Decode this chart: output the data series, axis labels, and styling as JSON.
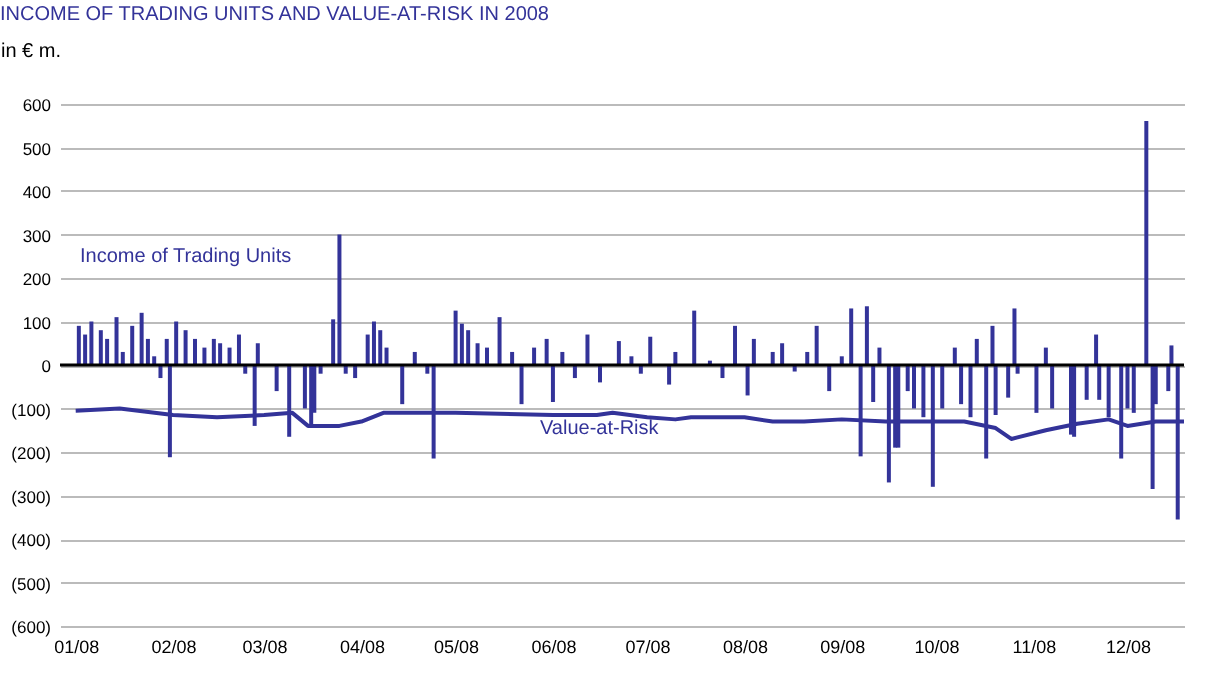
{
  "chart_data": {
    "type": "bar",
    "title": "INCOME OF TRADING UNITS AND VALUE-AT-RISK IN 2008",
    "ylabel": "in € m.",
    "series": [
      {
        "name": "Income of Trading Units",
        "color": "#333399",
        "x": [
          "2008-01-02",
          "2008-01-04",
          "2008-01-06",
          "2008-01-09",
          "2008-01-11",
          "2008-01-14",
          "2008-01-16",
          "2008-01-19",
          "2008-01-22",
          "2008-01-24",
          "2008-01-26",
          "2008-01-28",
          "2008-01-30",
          "2008-01-31",
          "2008-02-02",
          "2008-02-05",
          "2008-02-08",
          "2008-02-11",
          "2008-02-14",
          "2008-02-16",
          "2008-02-19",
          "2008-02-22",
          "2008-02-24",
          "2008-02-27",
          "2008-02-28",
          "2008-03-05",
          "2008-03-09",
          "2008-03-14",
          "2008-03-16",
          "2008-03-17",
          "2008-03-19",
          "2008-03-23",
          "2008-03-25",
          "2008-03-27",
          "2008-03-30",
          "2008-04-03",
          "2008-04-05",
          "2008-04-07",
          "2008-04-09",
          "2008-04-14",
          "2008-04-18",
          "2008-04-22",
          "2008-04-24",
          "2008-05-01",
          "2008-05-03",
          "2008-05-05",
          "2008-05-08",
          "2008-05-11",
          "2008-05-15",
          "2008-05-19",
          "2008-05-22",
          "2008-05-26",
          "2008-05-30",
          "2008-06-01",
          "2008-06-04",
          "2008-06-08",
          "2008-06-12",
          "2008-06-16",
          "2008-06-22",
          "2008-06-26",
          "2008-06-29",
          "2008-07-02",
          "2008-07-08",
          "2008-07-10",
          "2008-07-16",
          "2008-07-21",
          "2008-07-25",
          "2008-07-29",
          "2008-08-02",
          "2008-08-04",
          "2008-08-10",
          "2008-08-13",
          "2008-08-17",
          "2008-08-21",
          "2008-08-24",
          "2008-08-28",
          "2008-09-01",
          "2008-09-04",
          "2008-09-07",
          "2008-09-09",
          "2008-09-11",
          "2008-09-13",
          "2008-09-16",
          "2008-09-18",
          "2008-09-19",
          "2008-09-22",
          "2008-09-24",
          "2008-09-27",
          "2008-09-30",
          "2008-10-03",
          "2008-10-07",
          "2008-10-09",
          "2008-10-12",
          "2008-10-14",
          "2008-10-17",
          "2008-10-19",
          "2008-10-20",
          "2008-10-24",
          "2008-10-26",
          "2008-10-27",
          "2008-11-02",
          "2008-11-05",
          "2008-11-07",
          "2008-11-13",
          "2008-11-14",
          "2008-11-18",
          "2008-11-21",
          "2008-11-22",
          "2008-11-25",
          "2008-11-29",
          "2008-12-01",
          "2008-12-03",
          "2008-12-07",
          "2008-12-09",
          "2008-12-10",
          "2008-12-14",
          "2008-12-15",
          "2008-12-17"
        ],
        "values": [
          90,
          70,
          100,
          80,
          60,
          110,
          30,
          90,
          120,
          60,
          20,
          -30,
          60,
          -212,
          100,
          80,
          60,
          40,
          60,
          50,
          40,
          70,
          -20,
          -140,
          50,
          -60,
          -165,
          -100,
          -140,
          -110,
          -20,
          105,
          300,
          -20,
          -30,
          70,
          100,
          80,
          40,
          -90,
          30,
          -20,
          -215,
          125,
          95,
          80,
          50,
          40,
          110,
          30,
          -90,
          40,
          60,
          -85,
          30,
          -30,
          70,
          -40,
          55,
          20,
          -20,
          65,
          -45,
          30,
          125,
          10,
          -30,
          90,
          -70,
          60,
          30,
          50,
          -15,
          30,
          90,
          -60,
          20,
          130,
          -210,
          135,
          -85,
          40,
          -270,
          -190,
          -190,
          -60,
          -100,
          -120,
          -280,
          -100,
          40,
          -90,
          -120,
          60,
          -215,
          90,
          -115,
          -75,
          130,
          -20,
          -110,
          40,
          -100,
          -160,
          -165,
          -80,
          70,
          -80,
          -120,
          -215,
          -100,
          -110,
          561,
          -285,
          -90,
          -60,
          45,
          -355
        ]
      },
      {
        "name": "Value-at-Risk",
        "type": "line",
        "color": "#333399",
        "x": [
          "2008-01-01",
          "2008-01-15",
          "2008-02-01",
          "2008-02-15",
          "2008-03-01",
          "2008-03-10",
          "2008-03-15",
          "2008-03-25",
          "2008-04-01",
          "2008-04-08",
          "2008-05-01",
          "2008-06-01",
          "2008-06-15",
          "2008-06-20",
          "2008-07-01",
          "2008-07-10",
          "2008-07-15",
          "2008-08-01",
          "2008-08-10",
          "2008-08-20",
          "2008-09-01",
          "2008-09-15",
          "2008-09-25",
          "2008-10-10",
          "2008-10-20",
          "2008-10-25",
          "2008-11-05",
          "2008-11-15",
          "2008-11-25",
          "2008-12-01",
          "2008-12-10",
          "2008-12-19"
        ],
        "values": [
          -105,
          -100,
          -115,
          -120,
          -115,
          -110,
          -140,
          -140,
          -130,
          -110,
          -110,
          -115,
          -115,
          -110,
          -120,
          -125,
          -120,
          -120,
          -130,
          -130,
          -125,
          -130,
          -130,
          -130,
          -145,
          -170,
          -150,
          -135,
          -125,
          -140,
          -130,
          -130
        ]
      }
    ],
    "xlim": [
      "2007-12-27",
      "2008-12-19"
    ],
    "xticks": [
      {
        "value": "2008-01-01",
        "label": "01/08"
      },
      {
        "value": "2008-02-01",
        "label": "02/08"
      },
      {
        "value": "2008-03-01",
        "label": "03/08"
      },
      {
        "value": "2008-04-01",
        "label": "04/08"
      },
      {
        "value": "2008-05-01",
        "label": "05/08"
      },
      {
        "value": "2008-06-01",
        "label": "06/08"
      },
      {
        "value": "2008-07-01",
        "label": "07/08"
      },
      {
        "value": "2008-08-01",
        "label": "08/08"
      },
      {
        "value": "2008-09-01",
        "label": "09/08"
      },
      {
        "value": "2008-10-01",
        "label": "10/08"
      },
      {
        "value": "2008-11-01",
        "label": "11/08"
      },
      {
        "value": "2008-12-01",
        "label": "12/08"
      }
    ],
    "ylim": [
      -600,
      600
    ],
    "yticks": [
      600,
      500,
      400,
      300,
      200,
      100,
      0,
      {
        "value": -100,
        "label": "(100)"
      },
      {
        "value": -200,
        "label": "(200)"
      },
      {
        "value": -300,
        "label": "(300)"
      },
      {
        "value": -400,
        "label": "(400)"
      },
      {
        "value": -500,
        "label": "(500)"
      },
      {
        "value": -600,
        "label": "(600)"
      }
    ],
    "grid": "y",
    "ref_lines": [
      {
        "axis": "y",
        "value": 0,
        "color": "#000000"
      }
    ]
  }
}
